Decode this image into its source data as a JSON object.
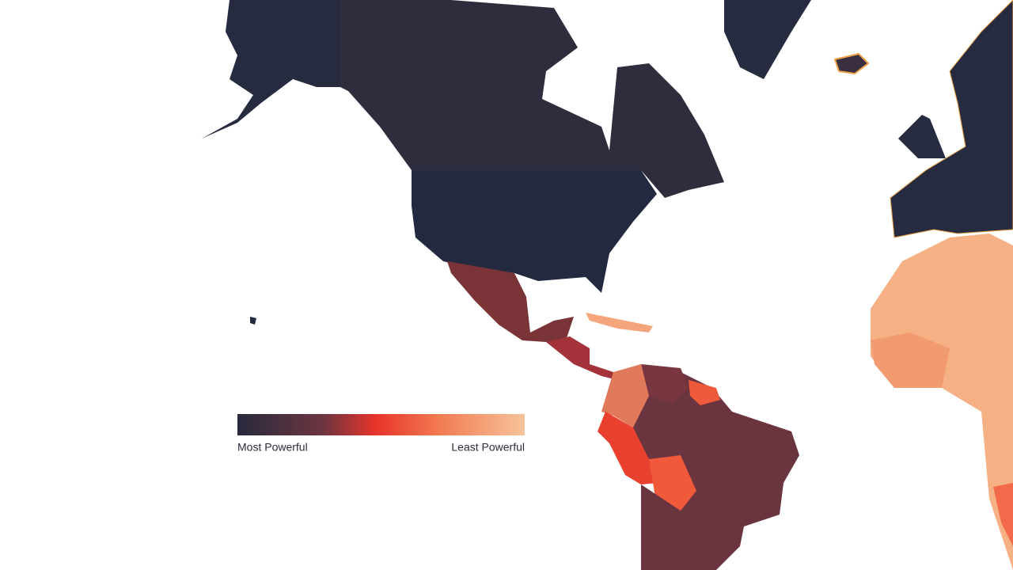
{
  "legend": {
    "min_label": "Most Powerful",
    "max_label": "Least Powerful"
  }
}
